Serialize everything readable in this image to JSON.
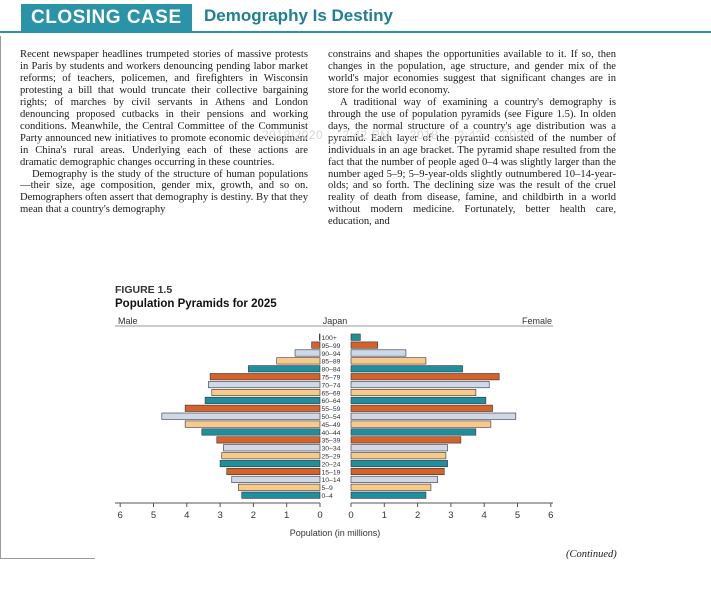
{
  "header": {
    "section_label": "CLOSING CASE",
    "title": "Demography Is Destiny",
    "accent_color": "#2a93a8"
  },
  "body_text": {
    "left_paragraphs": [
      "Recent newspaper headlines trumpeted stories of massive protests in Paris by students and workers denouncing pending labor market reforms; of teachers, policemen, and firefighters in Wisconsin protesting a bill that would truncate their collective bargaining rights; of marches by civil servants in Athens and London denouncing proposed cutbacks in their pensions and working conditions. Meanwhile, the Central Committee of the Communist Party announced new initiatives to promote economic development in China's rural areas. Underlying each of these actions are dramatic demographic changes occurring in these countries.",
      "Demography is the study of the structure of human populations—their size, age composition, gender mix, growth, and so on. Demographers often assert that demography is destiny. By that they mean that a country's demography"
    ],
    "right_paragraphs": [
      "constrains and shapes the opportunities available to it. If so, then changes in the population, age structure, and gender mix of the world's major economies suggest that significant changes are in store for the world economy.",
      "A traditional way of examining a country's demography is through the use of population pyramids (see Figure 1.5). In olden days, the normal structure of a country's age distribution was a pyramid. Each layer of the pyramid consisted of the number of individuals in an age bracket. The pyramid shape resulted from the fact that the number of people aged 0–4 was slightly larger than the number aged 5–9; 5–9-year-olds slightly outnumbered 10–14-year-olds; and so forth. The declining size was the result of the cruel reality of death from disease, famine, and childbirth in a world without modern medicine. Fortunately, better health care, education, and"
    ]
  },
  "watermark": "2018/2020 ... 2:42 PM ... 2018 ... 2:42 ... 2029",
  "figure": {
    "label": "FIGURE 1.5",
    "title": "Population Pyramids for 2025"
  },
  "chart_data": {
    "type": "bar",
    "orientation": "horizontal-pyramid",
    "title": "Japan",
    "left_label": "Male",
    "right_label": "Female",
    "xlabel": "Population (in millions)",
    "xlim": [
      -6,
      6
    ],
    "x_tick_labels": [
      "6",
      "5",
      "4",
      "3",
      "2",
      "1",
      "0",
      "0",
      "1",
      "2",
      "3",
      "4",
      "5",
      "6"
    ],
    "grid": false,
    "categories": [
      "0–4",
      "5–9",
      "10–14",
      "15–19",
      "20–24",
      "25–29",
      "30–34",
      "35–39",
      "40–44",
      "45–49",
      "50–54",
      "55–59",
      "60–64",
      "65–69",
      "70–74",
      "75–79",
      "80–84",
      "85–89",
      "90–94",
      "95–99",
      "100+"
    ],
    "series": [
      {
        "name": "Male",
        "values": [
          2.35,
          2.45,
          2.65,
          2.8,
          3.0,
          2.95,
          2.9,
          3.1,
          3.55,
          4.05,
          4.75,
          4.05,
          3.45,
          3.25,
          3.35,
          3.3,
          2.15,
          1.3,
          0.75,
          0.25,
          0.02
        ]
      },
      {
        "name": "Female",
        "values": [
          2.25,
          2.4,
          2.6,
          2.8,
          2.9,
          2.85,
          2.9,
          3.3,
          3.75,
          4.2,
          4.95,
          4.25,
          4.05,
          3.75,
          4.15,
          4.45,
          3.35,
          2.25,
          1.65,
          0.8,
          0.28
        ]
      }
    ],
    "bar_colors": [
      "#1f8e9e",
      "#f7c98b",
      "#ced8e8",
      "#d4622b"
    ]
  },
  "continued": "(Continued)"
}
